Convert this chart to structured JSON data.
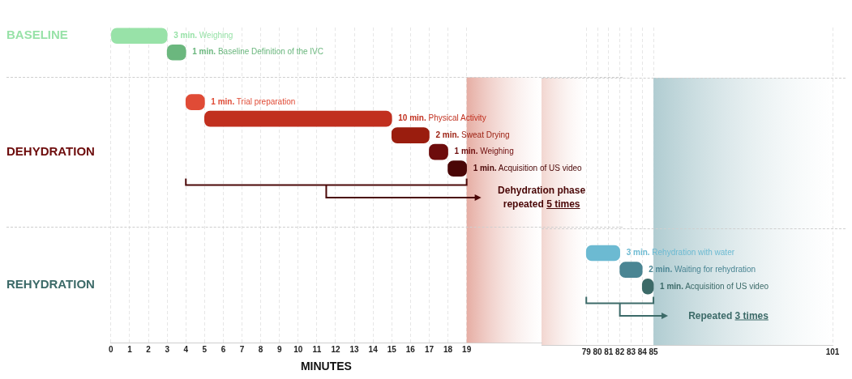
{
  "chart_data": [
    {
      "type": "bar",
      "orientation": "horizontal",
      "categories": [
        "BASELINE",
        null,
        null,
        null,
        null,
        null,
        null,
        "DEHYDRATION",
        null,
        null,
        null,
        null,
        null,
        null,
        null,
        "REHYDRATION",
        null,
        null,
        null
      ],
      "base": [
        0,
        3,
        null,
        null,
        4,
        5,
        15,
        17,
        18,
        null,
        null,
        null,
        null,
        null,
        null,
        null,
        null,
        null,
        null
      ],
      "values": [
        3,
        1,
        null,
        null,
        1,
        10,
        2,
        1,
        1,
        null,
        null,
        null,
        null,
        null,
        null,
        null,
        null,
        null,
        null
      ],
      "colors": [
        "#98e2a8",
        "#6bb77e",
        null,
        null,
        "#e04b36",
        "#c1301f",
        "#9a1d0e",
        "#6d0c0c",
        "#4a0707",
        null,
        null,
        null,
        null,
        null,
        null,
        null,
        null,
        null,
        null
      ],
      "value_labels": [
        "3 min. Weighing",
        "1 min. Baseline Definition of the IVC",
        null,
        null,
        "1 min. Trial preparation",
        "10 min. Physical Activity",
        "2 min. Sweat Drying",
        "1 min. Weighing",
        "1 min. Acquisition of US video",
        null,
        null,
        null,
        null,
        null,
        null,
        null,
        null,
        null,
        null
      ],
      "xlabel": "MINUTES",
      "xlim": [
        0,
        23
      ],
      "xticks": [
        0,
        1,
        2,
        3,
        4,
        5,
        6,
        7,
        8,
        9,
        10,
        11,
        12,
        13,
        14,
        15,
        16,
        17,
        18,
        19
      ],
      "grid": "x",
      "bands": [
        {
          "axis": "x",
          "from": 19,
          "to": 23,
          "color": "#e6ada3"
        }
      ],
      "annotations": [
        "Dehydration phase repeated 5 times"
      ]
    },
    {
      "type": "bar",
      "orientation": "horizontal",
      "base": [
        null,
        null,
        null,
        null,
        null,
        null,
        null,
        null,
        null,
        null,
        null,
        null,
        null,
        79,
        82,
        84,
        null,
        null,
        null
      ],
      "values": [
        null,
        null,
        null,
        null,
        null,
        null,
        null,
        null,
        null,
        null,
        null,
        null,
        null,
        3,
        2,
        1,
        null,
        null,
        null
      ],
      "colors": [
        null,
        null,
        null,
        null,
        null,
        null,
        null,
        null,
        null,
        null,
        null,
        null,
        null,
        "#6cbad2",
        "#4a8593",
        "#3c6a68",
        null,
        null,
        null
      ],
      "value_labels": [
        null,
        null,
        null,
        null,
        null,
        null,
        null,
        null,
        null,
        null,
        null,
        null,
        null,
        "3 min. Rehydration with water",
        "2 min. Waiting for rehydration",
        "1 min. Acquisition of US video",
        null,
        null,
        null
      ],
      "xlim": [
        75,
        101
      ],
      "xticks": [
        79,
        80,
        81,
        82,
        83,
        84,
        85,
        101
      ],
      "grid": "x",
      "tick_labels": "x",
      "categories": [
        null,
        null,
        null,
        null,
        null,
        null,
        null,
        null,
        null,
        null,
        null,
        null,
        null,
        null,
        null,
        null,
        null,
        null,
        null
      ],
      "bands": [
        {
          "axis": "x",
          "from": 75,
          "to": 79,
          "color": "#f2d6d0"
        },
        {
          "axis": "x",
          "from": 85,
          "to": 101,
          "color": "#b0ccd1"
        }
      ],
      "annotations": [
        "Repeated 3 times"
      ]
    }
  ]
}
